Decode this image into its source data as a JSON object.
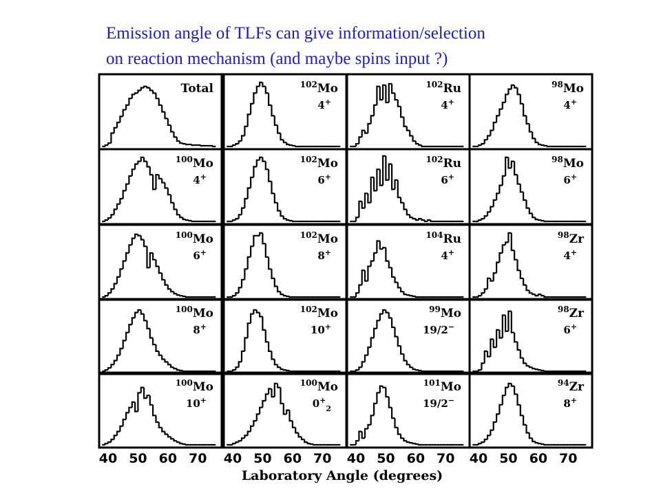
{
  "slide": {
    "title_line1": "Emission angle of TLFs can give information/selection",
    "title_line2": "on reaction mechanism (and maybe spins input ?)"
  },
  "colors": {
    "title": "#1a1ad0",
    "ink": "#000000",
    "background": "#ffffff"
  },
  "chart_data": {
    "type": "bar",
    "layout": "grid 5 rows x 4 columns of step histograms",
    "xlabel": "Laboratory Angle (degrees)",
    "ylabel": "",
    "xlim": [
      37,
      78
    ],
    "xticks": [
      40,
      50,
      60,
      70
    ],
    "x_tick_labels": [
      "40",
      "50",
      "60",
      "70"
    ],
    "ylim": [
      0,
      1
    ],
    "grid": false,
    "bin_width_deg": 1,
    "panels": [
      {
        "id": "total",
        "mass": "",
        "element": "Total",
        "state": "",
        "state_sub": "",
        "x_start": 38,
        "values": [
          0,
          0.02,
          0.05,
          0.2,
          0.28,
          0.36,
          0.45,
          0.55,
          0.62,
          0.72,
          0.78,
          0.8,
          0.84,
          0.88,
          0.9,
          0.88,
          0.84,
          0.8,
          0.72,
          0.62,
          0.52,
          0.42,
          0.32,
          0.22,
          0.14,
          0.08,
          0.05,
          0.04,
          0.03,
          0.03,
          0.02,
          0.02,
          0.02,
          0.01,
          0.01,
          0.01,
          0.01,
          0
        ]
      },
      {
        "id": "102mo-4",
        "mass": "102",
        "element": "Mo",
        "state": "4",
        "state_sub": "",
        "x_start": 38,
        "values": [
          0,
          0,
          0.02,
          0.04,
          0.08,
          0.16,
          0.3,
          0.48,
          0.64,
          0.8,
          0.9,
          0.96,
          0.9,
          0.8,
          0.62,
          0.46,
          0.32,
          0.2,
          0.1,
          0.06,
          0.03,
          0.02,
          0.01,
          0,
          0,
          0,
          0,
          0,
          0,
          0,
          0,
          0,
          0,
          0,
          0,
          0,
          0,
          0
        ]
      },
      {
        "id": "102ru-4",
        "mass": "102",
        "element": "Ru",
        "state": "4",
        "state_sub": "",
        "x_start": 38,
        "values": [
          0,
          0,
          0.04,
          0.14,
          0.24,
          0.2,
          0.34,
          0.46,
          0.62,
          0.9,
          0.7,
          0.92,
          0.66,
          0.94,
          0.8,
          0.7,
          0.6,
          0.44,
          0.3,
          0.24,
          0.16,
          0.08,
          0.04,
          0.02,
          0,
          0,
          0,
          0,
          0,
          0,
          0,
          0,
          0,
          0,
          0,
          0,
          0,
          0
        ]
      },
      {
        "id": "98mo-4",
        "mass": "98",
        "element": "Mo",
        "state": "4",
        "state_sub": "",
        "x_start": 38,
        "values": [
          0,
          0,
          0.02,
          0.04,
          0.1,
          0.16,
          0.24,
          0.36,
          0.46,
          0.56,
          0.66,
          0.78,
          0.86,
          0.92,
          0.88,
          0.78,
          0.64,
          0.46,
          0.34,
          0.22,
          0.12,
          0.06,
          0.03,
          0.02,
          0.01,
          0,
          0,
          0,
          0,
          0,
          0,
          0,
          0,
          0,
          0,
          0,
          0,
          0
        ]
      },
      {
        "id": "100mo-4",
        "mass": "100",
        "element": "Mo",
        "state": "4",
        "state_sub": "",
        "x_start": 38,
        "values": [
          0,
          0.02,
          0.05,
          0.1,
          0.18,
          0.26,
          0.34,
          0.46,
          0.56,
          0.68,
          0.78,
          0.86,
          0.9,
          0.96,
          0.9,
          0.82,
          0.7,
          0.48,
          0.7,
          0.64,
          0.58,
          0.5,
          0.4,
          0.28,
          0.18,
          0.1,
          0.06,
          0.03,
          0.02,
          0.01,
          0,
          0,
          0,
          0,
          0,
          0,
          0,
          0
        ]
      },
      {
        "id": "102mo-6",
        "mass": "102",
        "element": "Mo",
        "state": "6",
        "state_sub": "",
        "x_start": 38,
        "values": [
          0,
          0,
          0.02,
          0.04,
          0.1,
          0.2,
          0.34,
          0.5,
          0.66,
          0.82,
          0.92,
          0.96,
          0.9,
          0.78,
          0.6,
          0.42,
          0.28,
          0.16,
          0.08,
          0.04,
          0.02,
          0.01,
          0,
          0,
          0,
          0,
          0,
          0,
          0,
          0,
          0,
          0,
          0,
          0,
          0,
          0,
          0,
          0
        ]
      },
      {
        "id": "102ru-6",
        "mass": "102",
        "element": "Ru",
        "state": "6",
        "state_sub": "",
        "x_start": 38,
        "values": [
          0,
          0,
          0.06,
          0.3,
          0.2,
          0.42,
          0.28,
          0.66,
          0.46,
          0.78,
          0.54,
          0.98,
          0.62,
          0.86,
          0.48,
          0.62,
          0.36,
          0.28,
          0.18,
          0.1,
          0.06,
          0.04,
          0.02,
          0.04,
          0.02,
          0,
          0.02,
          0,
          0,
          0,
          0,
          0,
          0,
          0,
          0,
          0,
          0,
          0
        ]
      },
      {
        "id": "98mo-6",
        "mass": "98",
        "element": "Mo",
        "state": "6",
        "state_sub": "",
        "x_start": 38,
        "values": [
          0,
          0,
          0.02,
          0.04,
          0.08,
          0.14,
          0.22,
          0.32,
          0.42,
          0.54,
          0.68,
          0.96,
          0.8,
          0.9,
          0.7,
          0.56,
          0.44,
          0.32,
          0.2,
          0.12,
          0.06,
          0.03,
          0.02,
          0.01,
          0,
          0,
          0,
          0,
          0,
          0,
          0,
          0,
          0,
          0,
          0,
          0,
          0,
          0
        ]
      },
      {
        "id": "100mo-6",
        "mass": "100",
        "element": "Mo",
        "state": "6",
        "state_sub": "",
        "x_start": 38,
        "values": [
          0,
          0.02,
          0.06,
          0.12,
          0.2,
          0.3,
          0.42,
          0.54,
          0.66,
          0.78,
          0.88,
          0.94,
          0.92,
          0.86,
          0.76,
          0.44,
          0.66,
          0.56,
          0.46,
          0.36,
          0.26,
          0.18,
          0.12,
          0.08,
          0.05,
          0.03,
          0.02,
          0.01,
          0,
          0,
          0,
          0,
          0,
          0,
          0,
          0,
          0,
          0
        ]
      },
      {
        "id": "102mo-8",
        "mass": "102",
        "element": "Mo",
        "state": "8",
        "state_sub": "",
        "x_start": 38,
        "values": [
          0,
          0,
          0.02,
          0.06,
          0.14,
          0.26,
          0.42,
          0.6,
          0.76,
          0.92,
          0.92,
          0.96,
          0.8,
          0.6,
          0.42,
          0.28,
          0.16,
          0.08,
          0.04,
          0.02,
          0.01,
          0,
          0,
          0,
          0,
          0,
          0,
          0,
          0,
          0,
          0,
          0,
          0,
          0,
          0,
          0,
          0,
          0
        ]
      },
      {
        "id": "104ru-4",
        "mass": "104",
        "element": "Ru",
        "state": "4",
        "state_sub": "",
        "x_start": 38,
        "values": [
          0,
          0,
          0.06,
          0.18,
          0.4,
          0.24,
          0.46,
          0.54,
          0.66,
          0.84,
          0.72,
          0.74,
          0.54,
          0.44,
          0.3,
          0.22,
          0.14,
          0.08,
          0.04,
          0.03,
          0.02,
          0.01,
          0,
          0,
          0,
          0,
          0,
          0,
          0,
          0,
          0,
          0,
          0,
          0,
          0,
          0,
          0,
          0
        ]
      },
      {
        "id": "98zr-4",
        "mass": "98",
        "element": "Zr",
        "state": "4",
        "state_sub": "",
        "x_start": 38,
        "values": [
          0,
          0,
          0.02,
          0.06,
          0.12,
          0.28,
          0.24,
          0.36,
          0.52,
          0.66,
          0.78,
          0.82,
          0.96,
          0.7,
          0.56,
          0.4,
          0.28,
          0.18,
          0.1,
          0.06,
          0.04,
          0.02,
          0.04,
          0.02,
          0,
          0,
          0,
          0,
          0,
          0,
          0,
          0,
          0,
          0,
          0,
          0,
          0,
          0
        ]
      },
      {
        "id": "100mo-8",
        "mass": "100",
        "element": "Mo",
        "state": "8",
        "state_sub": "",
        "x_start": 38,
        "values": [
          0,
          0.02,
          0.05,
          0.1,
          0.16,
          0.24,
          0.34,
          0.46,
          0.58,
          0.7,
          0.8,
          0.88,
          0.92,
          0.86,
          0.76,
          0.64,
          0.5,
          0.4,
          0.3,
          0.24,
          0.18,
          0.14,
          0.1,
          0.06,
          0.04,
          0.02,
          0.01,
          0,
          0,
          0,
          0,
          0,
          0,
          0,
          0,
          0,
          0,
          0
        ]
      },
      {
        "id": "102mo-10",
        "mass": "102",
        "element": "Mo",
        "state": "10",
        "state_sub": "",
        "x_start": 38,
        "values": [
          0,
          0,
          0.02,
          0.06,
          0.14,
          0.3,
          0.5,
          0.72,
          0.86,
          0.92,
          0.88,
          0.82,
          0.62,
          0.44,
          0.3,
          0.18,
          0.1,
          0.06,
          0.03,
          0.02,
          0.01,
          0,
          0,
          0,
          0,
          0,
          0,
          0,
          0,
          0,
          0,
          0,
          0,
          0,
          0,
          0,
          0,
          0
        ]
      },
      {
        "id": "99mo-19-2",
        "mass": "99",
        "element": "Mo",
        "state": "19/2",
        "state_sub": "",
        "x_start": 38,
        "values": [
          0,
          0,
          0.02,
          0.06,
          0.14,
          0.24,
          0.36,
          0.5,
          0.64,
          0.76,
          0.86,
          0.92,
          0.88,
          0.8,
          0.66,
          0.52,
          0.38,
          0.26,
          0.16,
          0.1,
          0.06,
          0.03,
          0.02,
          0.01,
          0,
          0,
          0,
          0,
          0,
          0,
          0,
          0,
          0,
          0,
          0,
          0,
          0,
          0
        ]
      },
      {
        "id": "98zr-6",
        "mass": "98",
        "element": "Zr",
        "state": "6",
        "state_sub": "",
        "x_start": 38,
        "values": [
          0,
          0,
          0.02,
          0.12,
          0.3,
          0.22,
          0.48,
          0.36,
          0.62,
          0.5,
          0.84,
          0.6,
          0.9,
          0.58,
          0.44,
          0.32,
          0.2,
          0.12,
          0.08,
          0.06,
          0.04,
          0.03,
          0.02,
          0.01,
          0,
          0,
          0,
          0,
          0,
          0,
          0,
          0,
          0,
          0,
          0,
          0,
          0,
          0
        ]
      },
      {
        "id": "100mo-10",
        "mass": "100",
        "element": "Mo",
        "state": "10",
        "state_sub": "",
        "x_start": 38,
        "values": [
          0,
          0.02,
          0.04,
          0.08,
          0.14,
          0.2,
          0.28,
          0.38,
          0.48,
          0.56,
          0.64,
          0.5,
          0.78,
          0.86,
          0.7,
          0.74,
          0.6,
          0.44,
          0.34,
          0.26,
          0.2,
          0.16,
          0.12,
          0.09,
          0.06,
          0.04,
          0.02,
          0.01,
          0,
          0,
          0,
          0,
          0,
          0,
          0,
          0,
          0,
          0
        ]
      },
      {
        "id": "100mo-0-2",
        "mass": "100",
        "element": "Mo",
        "state": "0",
        "state_sub": "2",
        "x_start": 38,
        "values": [
          0,
          0,
          0.02,
          0.04,
          0.06,
          0.1,
          0.14,
          0.2,
          0.28,
          0.36,
          0.46,
          0.56,
          0.66,
          0.76,
          0.84,
          0.72,
          0.92,
          0.86,
          0.62,
          0.46,
          0.52,
          0.36,
          0.26,
          0.18,
          0.12,
          0.08,
          0.04,
          0.02,
          0.01,
          0,
          0,
          0,
          0,
          0,
          0,
          0,
          0,
          0
        ]
      },
      {
        "id": "101mo-19-2",
        "mass": "101",
        "element": "Mo",
        "state": "19/2",
        "state_sub": "",
        "x_start": 38,
        "values": [
          0,
          0,
          0.06,
          0.2,
          0.1,
          0.24,
          0.3,
          0.44,
          0.62,
          0.78,
          0.88,
          0.86,
          0.72,
          0.56,
          0.4,
          0.26,
          0.16,
          0.1,
          0.06,
          0.04,
          0.03,
          0.02,
          0.01,
          0,
          0,
          0,
          0,
          0,
          0,
          0,
          0,
          0,
          0,
          0,
          0,
          0,
          0,
          0
        ]
      },
      {
        "id": "94zr-8",
        "mass": "94",
        "element": "Zr",
        "state": "8",
        "state_sub": "",
        "x_start": 38,
        "values": [
          0,
          0,
          0.02,
          0.04,
          0.08,
          0.14,
          0.22,
          0.34,
          0.46,
          0.6,
          0.74,
          0.86,
          0.92,
          0.88,
          0.76,
          0.6,
          0.44,
          0.3,
          0.18,
          0.1,
          0.05,
          0.03,
          0.02,
          0.01,
          0,
          0,
          0,
          0,
          0,
          0,
          0,
          0,
          0,
          0,
          0,
          0,
          0,
          0
        ]
      }
    ]
  }
}
